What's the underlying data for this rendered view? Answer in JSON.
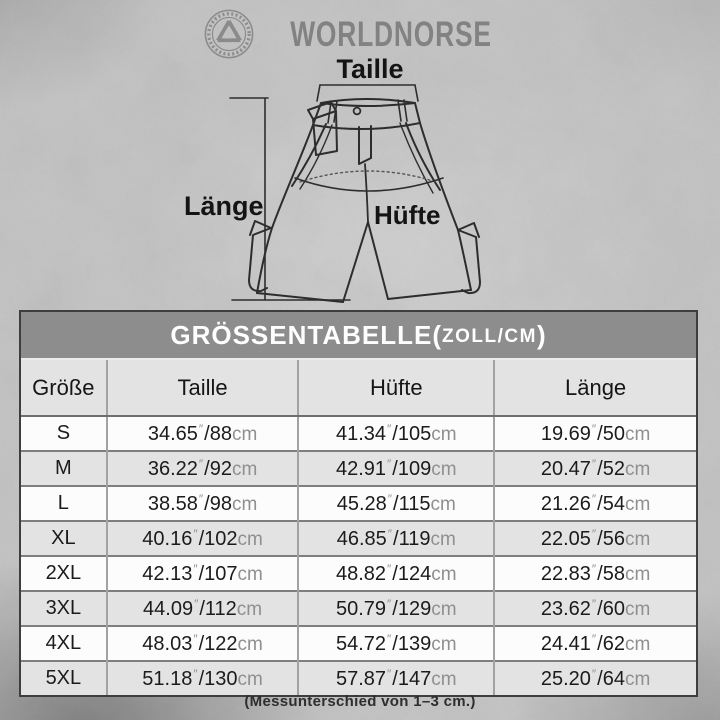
{
  "brand": {
    "name": "WORLDNORSE",
    "logo_icon": "valknut-emblem-icon"
  },
  "diagram": {
    "waist_label": "Taille",
    "length_label": "Länge",
    "hip_label": "Hüfte"
  },
  "table": {
    "title_main": "GRÖSSENTABELLE",
    "title_open": "(",
    "title_unit": "ZOLL/CM",
    "title_close": ")",
    "columns": [
      "Größe",
      "Taille",
      "Hüfte",
      "Länge"
    ],
    "unit_inch_mark": "″",
    "unit_cm": "cm",
    "rows": [
      {
        "size": "S",
        "taille": {
          "in": "34.65",
          "cm": "88"
        },
        "huefte": {
          "in": "41.34",
          "cm": "105"
        },
        "laenge": {
          "in": "19.69",
          "cm": "50"
        }
      },
      {
        "size": "M",
        "taille": {
          "in": "36.22",
          "cm": "92"
        },
        "huefte": {
          "in": "42.91",
          "cm": "109"
        },
        "laenge": {
          "in": "20.47",
          "cm": "52"
        }
      },
      {
        "size": "L",
        "taille": {
          "in": "38.58",
          "cm": "98"
        },
        "huefte": {
          "in": "45.28",
          "cm": "115"
        },
        "laenge": {
          "in": "21.26",
          "cm": "54"
        }
      },
      {
        "size": "XL",
        "taille": {
          "in": "40.16",
          "cm": "102"
        },
        "huefte": {
          "in": "46.85",
          "cm": "119"
        },
        "laenge": {
          "in": "22.05",
          "cm": "56"
        }
      },
      {
        "size": "2XL",
        "taille": {
          "in": "42.13",
          "cm": "107"
        },
        "huefte": {
          "in": "48.82",
          "cm": "124"
        },
        "laenge": {
          "in": "22.83",
          "cm": "58"
        }
      },
      {
        "size": "3XL",
        "taille": {
          "in": "44.09",
          "cm": "112"
        },
        "huefte": {
          "in": "50.79",
          "cm": "129"
        },
        "laenge": {
          "in": "23.62",
          "cm": "60"
        }
      },
      {
        "size": "4XL",
        "taille": {
          "in": "48.03",
          "cm": "122"
        },
        "huefte": {
          "in": "54.72",
          "cm": "139"
        },
        "laenge": {
          "in": "24.41",
          "cm": "62"
        }
      },
      {
        "size": "5XL",
        "taille": {
          "in": "51.18",
          "cm": "130"
        },
        "huefte": {
          "in": "57.87",
          "cm": "147"
        },
        "laenge": {
          "in": "25.20",
          "cm": "64"
        }
      }
    ]
  },
  "footnote": "(Messunterschied von 1–3 cm.)",
  "colors": {
    "title_bar_bg": "#8d8d8d",
    "row_stripe": "#e3e3e3",
    "row_plain": "#fcfcfc",
    "unit_text": "#8f8f8f",
    "line_art": "#2d2d2d"
  }
}
